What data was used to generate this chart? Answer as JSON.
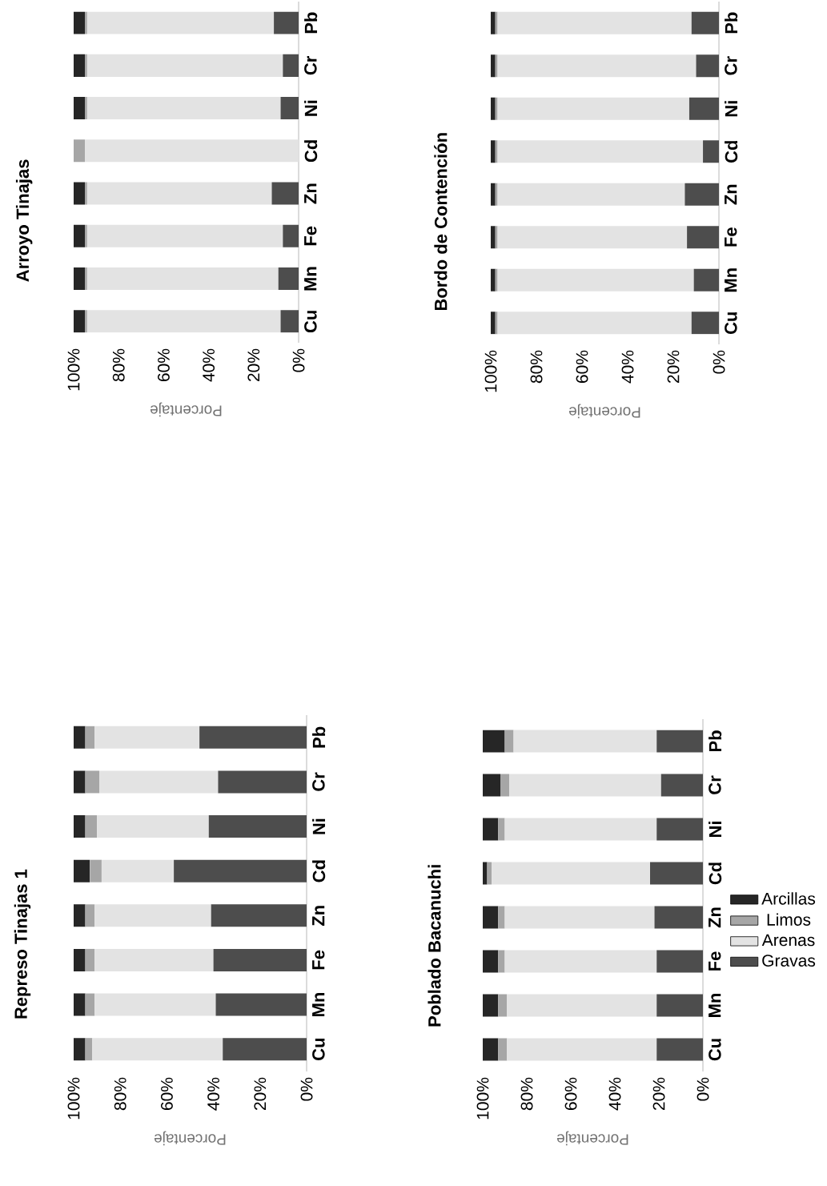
{
  "chart_data": [
    {
      "type": "bar",
      "stacked": true,
      "orientation": "horizontal",
      "title": "Represo Tinajas 1",
      "xlabel": "Porcentaje",
      "categories": [
        "Pb",
        "Cr",
        "Ni",
        "Cd",
        "Zn",
        "Fe",
        "Mn",
        "Cu"
      ],
      "xlim": [
        100,
        0
      ],
      "xticks": [
        {
          "value": 100,
          "label": "100%"
        },
        {
          "value": 80,
          "label": "80%"
        },
        {
          "value": 60,
          "label": "60%"
        },
        {
          "value": 40,
          "label": "40%"
        },
        {
          "value": 20,
          "label": "20%"
        },
        {
          "value": 0,
          "label": "0%"
        }
      ],
      "series": [
        {
          "color": "#4d4d4d",
          "values": [
            46,
            38,
            42,
            57,
            41,
            40,
            39,
            36
          ]
        },
        {
          "color": "#e3e3e3",
          "values": [
            45,
            51,
            48,
            31,
            50,
            51,
            52,
            56
          ]
        },
        {
          "color": "#a6a6a6",
          "values": [
            4,
            6,
            5,
            5,
            4,
            4,
            4,
            3
          ]
        },
        {
          "color": "#262626",
          "values": [
            5,
            5,
            5,
            7,
            5,
            5,
            5,
            5
          ]
        }
      ]
    },
    {
      "type": "bar",
      "stacked": true,
      "orientation": "horizontal",
      "title": "Arroyo Tinajas",
      "xlabel": "Porcentaje",
      "categories": [
        "Pb",
        "Cr",
        "Ni",
        "Cd",
        "Zn",
        "Fe",
        "Mn",
        "Cu"
      ],
      "xlim": [
        100,
        0
      ],
      "xticks": [
        {
          "value": 100,
          "label": "100%"
        },
        {
          "value": 80,
          "label": "80%"
        },
        {
          "value": 60,
          "label": "60%"
        },
        {
          "value": 40,
          "label": "40%"
        },
        {
          "value": 20,
          "label": "20%"
        },
        {
          "value": 0,
          "label": "0%"
        }
      ],
      "series": [
        {
          "color": "#4d4d4d",
          "values": [
            11,
            7,
            8,
            0,
            12,
            7,
            9,
            8
          ]
        },
        {
          "color": "#e3e3e3",
          "values": [
            83,
            87,
            86,
            95,
            82,
            87,
            85,
            86
          ]
        },
        {
          "color": "#a6a6a6",
          "values": [
            1,
            1,
            1,
            5,
            1,
            1,
            1,
            1
          ]
        },
        {
          "color": "#262626",
          "values": [
            5,
            5,
            5,
            0,
            5,
            5,
            5,
            5
          ]
        }
      ]
    },
    {
      "type": "bar",
      "stacked": true,
      "orientation": "horizontal",
      "title": "Poblado Bacanuchi",
      "xlabel": "Porcentaje",
      "categories": [
        "Pb",
        "Cr",
        "Ni",
        "Cd",
        "Zn",
        "Fe",
        "Mn",
        "Cu"
      ],
      "xlim": [
        100,
        0
      ],
      "xticks": [
        {
          "value": 100,
          "label": "100%"
        },
        {
          "value": 80,
          "label": "80%"
        },
        {
          "value": 60,
          "label": "60%"
        },
        {
          "value": 40,
          "label": "40%"
        },
        {
          "value": 20,
          "label": "20%"
        },
        {
          "value": 0,
          "label": "0%"
        }
      ],
      "legend": "right",
      "series": [
        {
          "name": "Gravas",
          "color": "#4d4d4d",
          "values": [
            21,
            19,
            21,
            24,
            22,
            21,
            21,
            21
          ]
        },
        {
          "name": "Arenas",
          "color": "#e3e3e3",
          "values": [
            65,
            69,
            69,
            72,
            68,
            69,
            68,
            68
          ]
        },
        {
          "name": "Limos",
          "color": "#a6a6a6",
          "values": [
            4,
            4,
            3,
            2,
            3,
            3,
            4,
            4
          ]
        },
        {
          "name": "Arcillas",
          "color": "#262626",
          "values": [
            10,
            8,
            7,
            2,
            7,
            7,
            7,
            7
          ]
        }
      ]
    },
    {
      "type": "bar",
      "stacked": true,
      "orientation": "horizontal",
      "title": "Bordo de Contención",
      "xlabel": "Porcentaje",
      "categories": [
        "Pb",
        "Cr",
        "Ni",
        "Cd",
        "Zn",
        "Fe",
        "Mn",
        "Cu"
      ],
      "xlim": [
        100,
        0
      ],
      "xticks": [
        {
          "value": 100,
          "label": "100%"
        },
        {
          "value": 80,
          "label": "80%"
        },
        {
          "value": 60,
          "label": "60%"
        },
        {
          "value": 40,
          "label": "40%"
        },
        {
          "value": 20,
          "label": "20%"
        },
        {
          "value": 0,
          "label": "0%"
        }
      ],
      "series": [
        {
          "color": "#4d4d4d",
          "values": [
            12,
            10,
            13,
            7,
            15,
            14,
            11,
            12
          ]
        },
        {
          "color": "#e3e3e3",
          "values": [
            85,
            87,
            84,
            90,
            82,
            83,
            86,
            85
          ]
        },
        {
          "color": "#a6a6a6",
          "values": [
            1,
            1,
            1,
            1,
            1,
            1,
            1,
            1
          ]
        },
        {
          "color": "#262626",
          "values": [
            2,
            2,
            2,
            2,
            2,
            2,
            2,
            2
          ]
        }
      ]
    }
  ]
}
